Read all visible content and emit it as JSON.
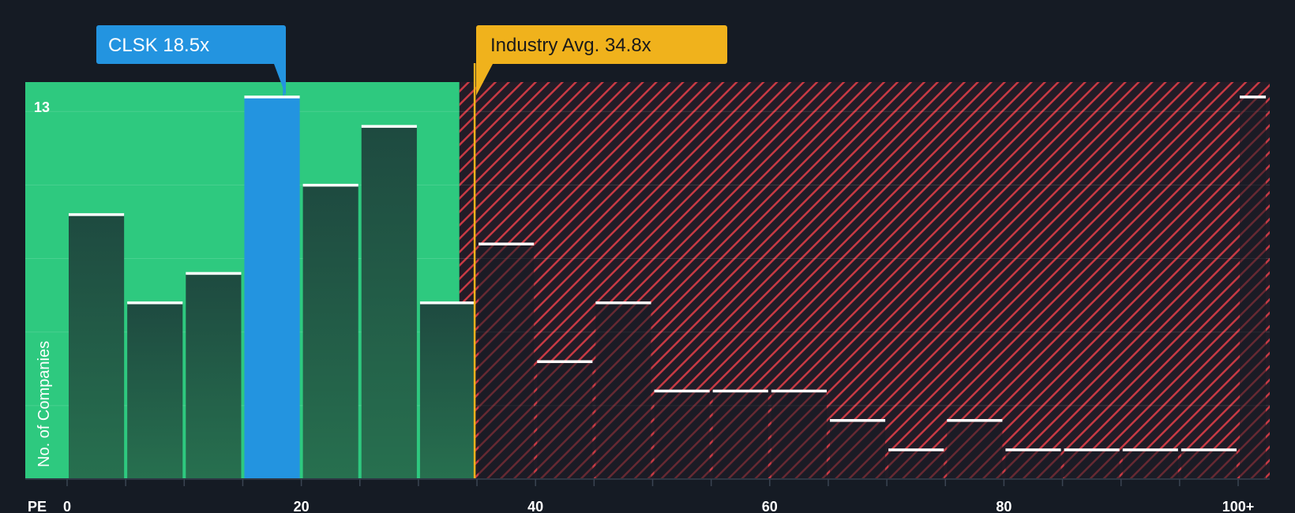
{
  "chart_data": {
    "type": "bar",
    "title": "",
    "xlabel": "PE",
    "ylabel": "No. of Companies",
    "xlim": [
      -5,
      102.5
    ],
    "ylim": [
      0,
      13.5
    ],
    "x_ticks": [
      {
        "value": 0,
        "label": "0"
      },
      {
        "value": 20,
        "label": "20"
      },
      {
        "value": 40,
        "label": "40"
      },
      {
        "value": 60,
        "label": "60"
      },
      {
        "value": 80,
        "label": "80"
      },
      {
        "value": 100,
        "label": "100+"
      }
    ],
    "y_tick_label": {
      "value": 13,
      "label": "13"
    },
    "bins": [
      {
        "start": 0,
        "end": 5,
        "count": 9
      },
      {
        "start": 5,
        "end": 10,
        "count": 6
      },
      {
        "start": 10,
        "end": 15,
        "count": 7
      },
      {
        "start": 15,
        "end": 20,
        "count": 13,
        "highlight": true
      },
      {
        "start": 20,
        "end": 25,
        "count": 10
      },
      {
        "start": 25,
        "end": 30,
        "count": 12
      },
      {
        "start": 30,
        "end": 35,
        "count": 6
      },
      {
        "start": 35,
        "end": 40,
        "count": 8
      },
      {
        "start": 40,
        "end": 45,
        "count": 4
      },
      {
        "start": 45,
        "end": 50,
        "count": 6
      },
      {
        "start": 50,
        "end": 55,
        "count": 3
      },
      {
        "start": 55,
        "end": 60,
        "count": 3
      },
      {
        "start": 60,
        "end": 65,
        "count": 3
      },
      {
        "start": 65,
        "end": 70,
        "count": 2
      },
      {
        "start": 70,
        "end": 75,
        "count": 1
      },
      {
        "start": 75,
        "end": 80,
        "count": 2
      },
      {
        "start": 80,
        "end": 85,
        "count": 1
      },
      {
        "start": 85,
        "end": 90,
        "count": 1
      },
      {
        "start": 90,
        "end": 95,
        "count": 1
      },
      {
        "start": 95,
        "end": 100,
        "count": 1
      },
      {
        "start": 100,
        "end": 102.5,
        "count": 13
      }
    ],
    "company": {
      "ticker": "CLSK",
      "value": 18.5,
      "label": "CLSK 18.5x"
    },
    "industry_avg": {
      "value": 34.8,
      "label": "Industry Avg. 34.8x"
    },
    "fair_zone_end": 33.5,
    "colors": {
      "background": "#151b24",
      "fair_zone": "#2ec97f",
      "bar": "#1e4a40",
      "highlight_bar": "#2394e0",
      "bar_cap": "#ffffff",
      "hatch_stripe": "#c83a44",
      "hatch_base": "#221c27",
      "industry": "#f0b21c",
      "company": "#2394e0"
    }
  }
}
